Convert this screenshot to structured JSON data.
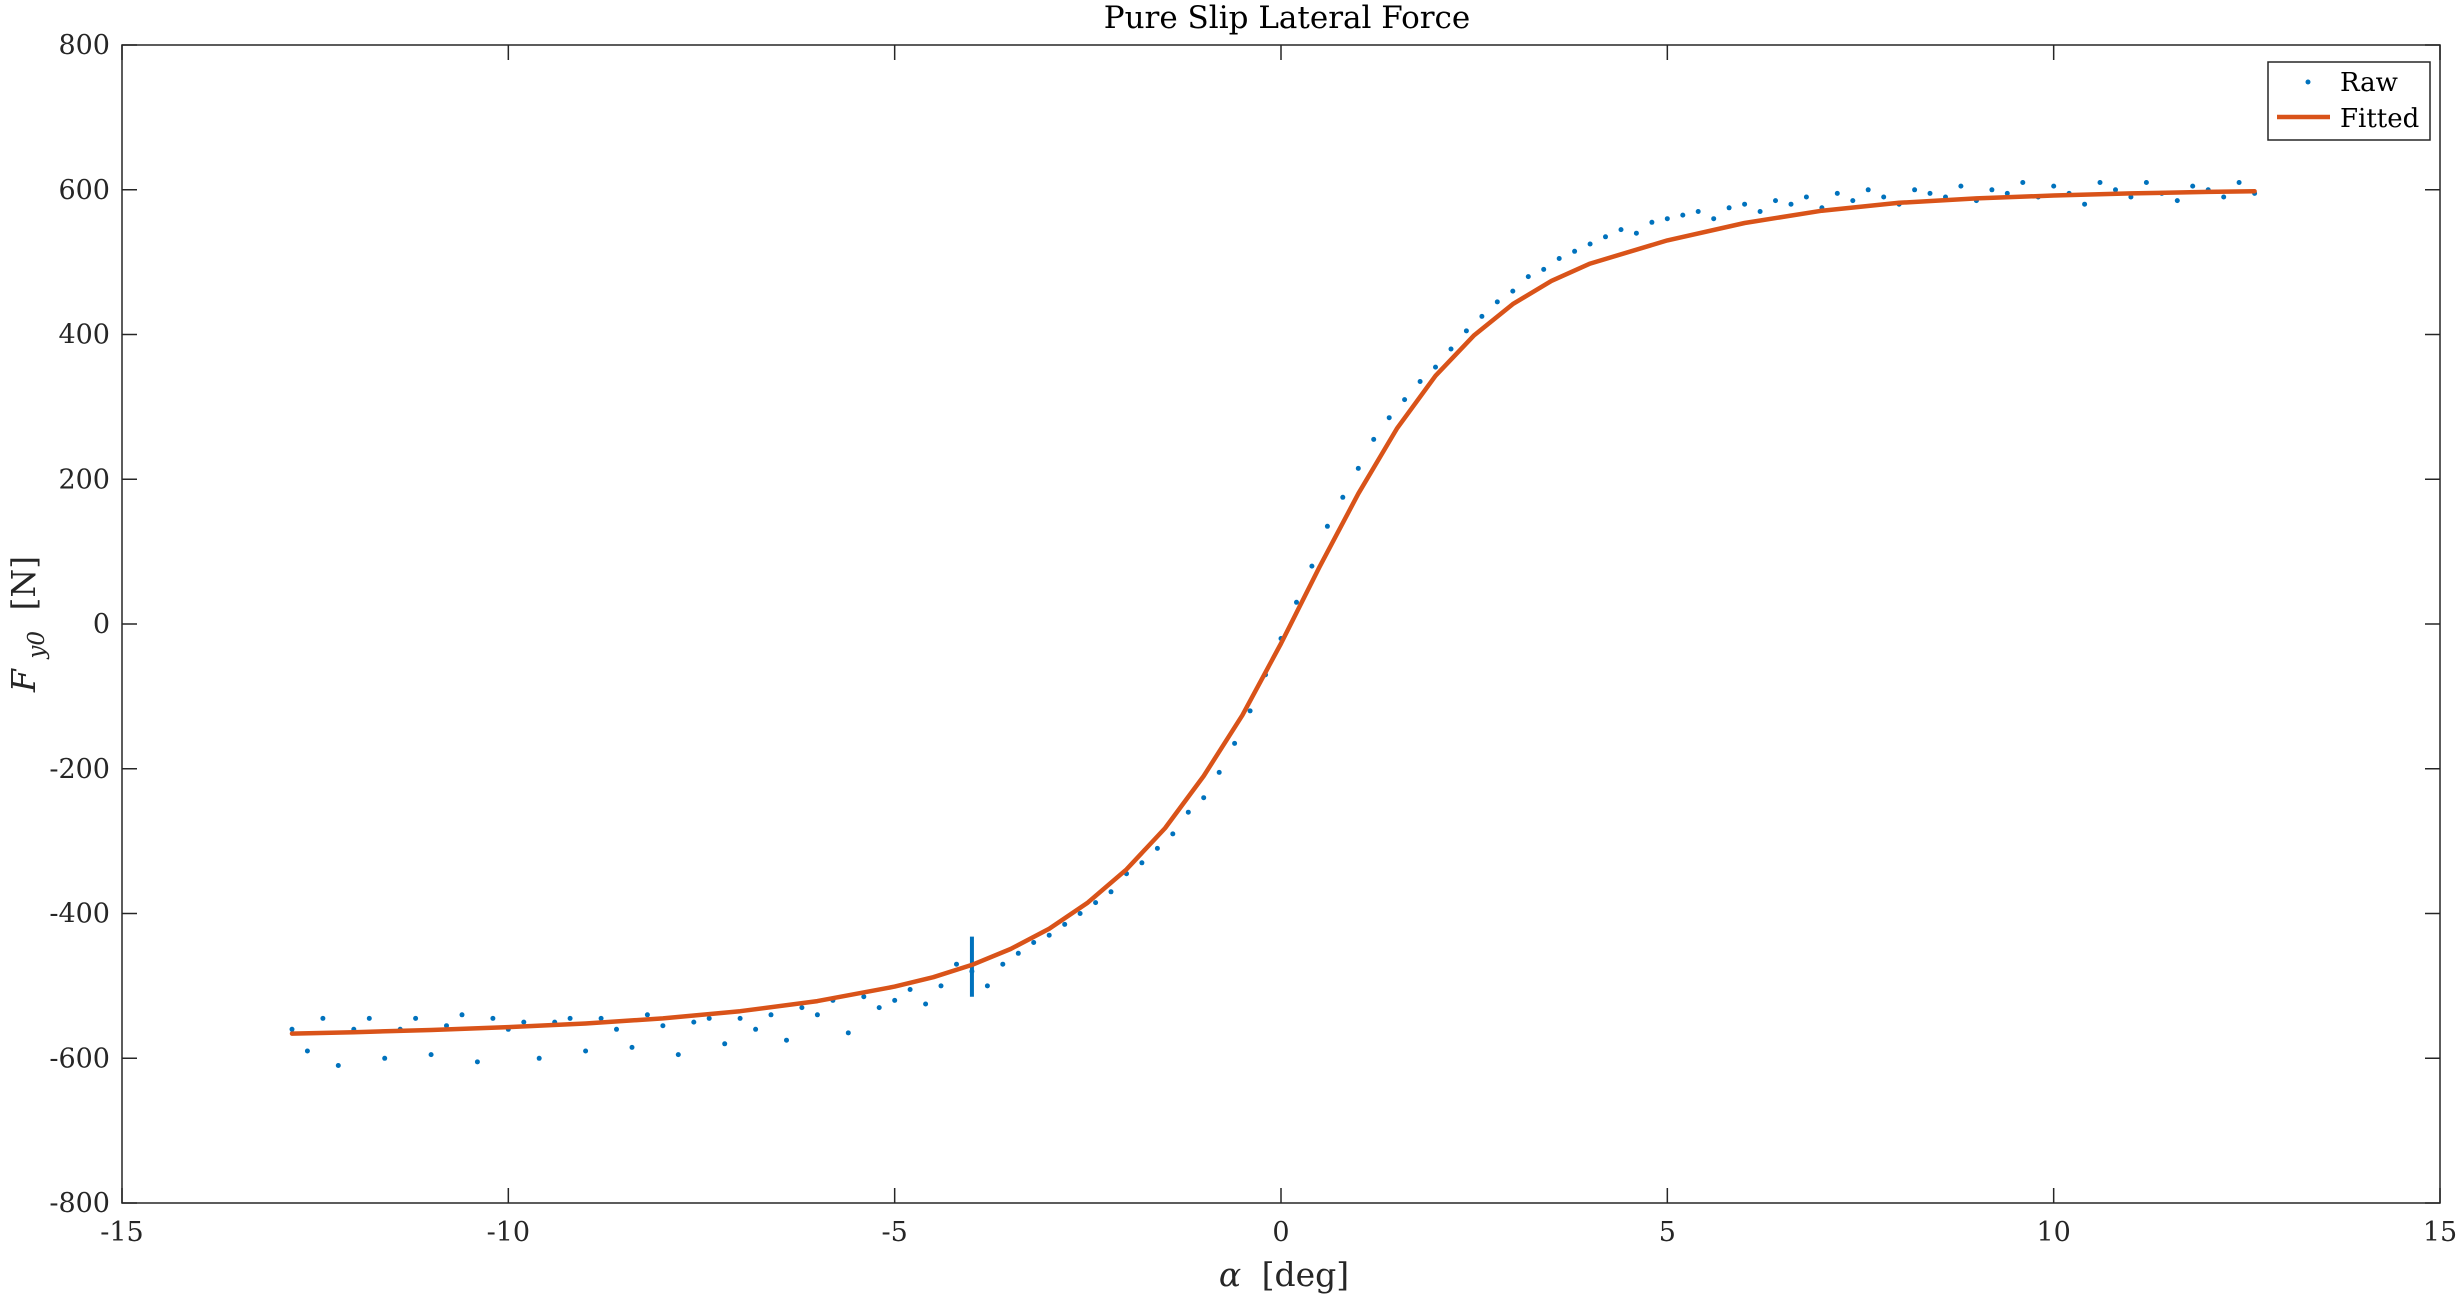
{
  "chart_data": {
    "type": "scatter",
    "title": "Pure Slip Lateral Force",
    "xlabel": {
      "symbol": "α",
      "unit": "[deg]"
    },
    "ylabel": {
      "main": "F",
      "sub": "y0",
      "unit": "[N]"
    },
    "xlim": [
      -15,
      15
    ],
    "ylim": [
      -800,
      800
    ],
    "x_ticks": [
      -15,
      -10,
      -5,
      0,
      5,
      10,
      15
    ],
    "y_ticks": [
      -800,
      -600,
      -400,
      -200,
      0,
      200,
      400,
      600,
      800
    ],
    "x_tick_labels": [
      "-15",
      "-10",
      "-5",
      "0",
      "5",
      "10",
      "15"
    ],
    "y_tick_labels": [
      "-800",
      "-600",
      "-400",
      "-200",
      "0",
      "200",
      "400",
      "600",
      "800"
    ],
    "grid": false,
    "legend_position": "top-right",
    "series": [
      {
        "name": "Raw",
        "style": "points",
        "color": "#0072BD",
        "x": [
          -12.8,
          -12.6,
          -12.4,
          -12.2,
          -12.0,
          -11.8,
          -11.6,
          -11.4,
          -11.2,
          -11.0,
          -10.8,
          -10.6,
          -10.4,
          -10.2,
          -10.0,
          -9.8,
          -9.6,
          -9.4,
          -9.2,
          -9.0,
          -8.8,
          -8.6,
          -8.4,
          -8.2,
          -8.0,
          -7.8,
          -7.6,
          -7.4,
          -7.2,
          -7.0,
          -6.8,
          -6.6,
          -6.4,
          -6.2,
          -6.0,
          -5.8,
          -5.6,
          -5.4,
          -5.2,
          -5.0,
          -4.8,
          -4.6,
          -4.4,
          -4.2,
          -4.0,
          -3.8,
          -3.6,
          -3.4,
          -3.2,
          -3.0,
          -2.8,
          -2.6,
          -2.4,
          -2.2,
          -2.0,
          -1.8,
          -1.6,
          -1.4,
          -1.2,
          -1.0,
          -0.8,
          -0.6,
          -0.4,
          -0.2,
          0.0,
          0.2,
          0.4,
          0.6,
          0.8,
          1.0,
          1.2,
          1.4,
          1.6,
          1.8,
          2.0,
          2.2,
          2.4,
          2.6,
          2.8,
          3.0,
          3.2,
          3.4,
          3.6,
          3.8,
          4.0,
          4.2,
          4.4,
          4.6,
          4.8,
          5.0,
          5.2,
          5.4,
          5.6,
          5.8,
          6.0,
          6.2,
          6.4,
          6.6,
          6.8,
          7.0,
          7.2,
          7.4,
          7.6,
          7.8,
          8.0,
          8.2,
          8.4,
          8.6,
          8.8,
          9.0,
          9.2,
          9.4,
          9.6,
          9.8,
          10.0,
          10.2,
          10.4,
          10.6,
          10.8,
          11.0,
          11.2,
          11.4,
          11.6,
          11.8,
          12.0,
          12.2,
          12.4,
          12.6
        ],
        "y": [
          -560,
          -590,
          -545,
          -610,
          -560,
          -545,
          -600,
          -560,
          -545,
          -595,
          -555,
          -540,
          -605,
          -545,
          -560,
          -550,
          -600,
          -550,
          -545,
          -590,
          -545,
          -560,
          -585,
          -540,
          -555,
          -595,
          -550,
          -545,
          -580,
          -545,
          -560,
          -540,
          -575,
          -530,
          -540,
          -520,
          -565,
          -515,
          -530,
          -520,
          -505,
          -525,
          -500,
          -470,
          -480,
          -500,
          -470,
          -455,
          -440,
          -430,
          -415,
          -400,
          -385,
          -370,
          -345,
          -330,
          -310,
          -290,
          -260,
          -240,
          -205,
          -165,
          -120,
          -70,
          -20,
          30,
          80,
          135,
          175,
          215,
          255,
          285,
          310,
          335,
          355,
          380,
          405,
          425,
          445,
          460,
          480,
          490,
          505,
          515,
          525,
          535,
          545,
          540,
          555,
          560,
          565,
          570,
          560,
          575,
          580,
          570,
          585,
          580,
          590,
          575,
          595,
          585,
          600,
          590,
          580,
          600,
          595,
          590,
          605,
          585,
          600,
          595,
          610,
          590,
          605,
          595,
          580,
          610,
          600,
          590,
          610,
          595,
          585,
          605,
          600,
          590,
          610,
          595
        ]
      },
      {
        "name": "Fitted",
        "style": "line",
        "color": "#D95319",
        "x": [
          -12.8,
          -12.0,
          -11.0,
          -10.0,
          -9.0,
          -8.0,
          -7.0,
          -6.0,
          -5.0,
          -4.5,
          -4.0,
          -3.5,
          -3.0,
          -2.5,
          -2.0,
          -1.5,
          -1.0,
          -0.5,
          0.0,
          0.5,
          1.0,
          1.5,
          2.0,
          2.5,
          3.0,
          3.5,
          4.0,
          5.0,
          6.0,
          7.0,
          8.0,
          9.0,
          10.0,
          11.0,
          12.0,
          12.6
        ],
        "y": [
          -566,
          -564,
          -561,
          -557,
          -552,
          -545,
          -535,
          -521,
          -501,
          -488,
          -471,
          -449,
          -421,
          -385,
          -339,
          -282,
          -210,
          -126,
          -27,
          79,
          180,
          270,
          343,
          399,
          442,
          474,
          498,
          530,
          554,
          571,
          582,
          588,
          592,
          595,
          597,
          598
        ]
      }
    ],
    "vertical_marker": {
      "x": -4.0,
      "y_range": [
        -515,
        -432
      ],
      "color": "#0072BD"
    }
  }
}
